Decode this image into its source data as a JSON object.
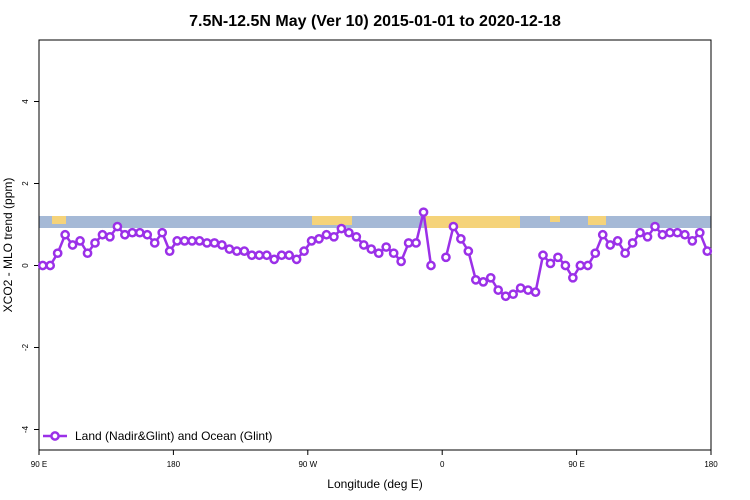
{
  "chart_data": {
    "type": "line",
    "title": "7.5N-12.5N May (Ver 10)   2015-01-01 to 2020-12-18",
    "x_label": "Longitude (deg E)",
    "y_label": "XCO2 - MLO trend (ppm)",
    "xlim": [
      90,
      540
    ],
    "xticks": [
      {
        "value": 90,
        "label": "90 E"
      },
      {
        "value": 180,
        "label": "180"
      },
      {
        "value": 270,
        "label": "90 W"
      },
      {
        "value": 360,
        "label": "0"
      },
      {
        "value": 450,
        "label": "90 E"
      },
      {
        "value": 540,
        "label": "180"
      }
    ],
    "ylim": [
      -4.5,
      5.5
    ],
    "yticks": [
      -4,
      -2,
      0,
      2,
      4
    ],
    "legend": "bottom-left",
    "x": [
      92.5,
      97.5,
      102.5,
      107.5,
      112.5,
      117.5,
      122.5,
      127.5,
      132.5,
      137.5,
      142.5,
      147.5,
      152.5,
      157.5,
      162.5,
      167.5,
      172.5,
      177.5,
      182.5,
      187.5,
      192.5,
      197.5,
      202.5,
      207.5,
      212.5,
      217.5,
      222.5,
      227.5,
      232.5,
      237.5,
      242.5,
      247.5,
      252.5,
      257.5,
      262.5,
      267.5,
      272.5,
      277.5,
      282.5,
      287.5,
      292.5,
      297.5,
      302.5,
      307.5,
      312.5,
      317.5,
      322.5,
      327.5,
      332.5,
      337.5,
      342.5,
      347.5,
      352.5,
      357.5,
      362.5,
      367.5,
      372.5,
      377.5,
      382.5,
      387.5,
      392.5,
      397.5,
      402.5,
      407.5,
      412.5,
      417.5,
      422.5,
      427.5,
      432.5,
      437.5,
      442.5,
      447.5,
      452.5,
      457.5,
      462.5,
      467.5,
      472.5,
      477.5,
      482.5,
      487.5,
      492.5,
      497.5,
      502.5,
      507.5,
      512.5,
      517.5,
      522.5,
      527.5,
      532.5,
      537.5
    ],
    "series": [
      {
        "name": "Land (Nadir&Glint) and Ocean (Glint)",
        "color": "#9b30e8",
        "values": [
          0,
          0,
          0.3,
          0.75,
          0.5,
          0.6,
          0.3,
          0.55,
          0.75,
          0.7,
          0.95,
          0.75,
          0.8,
          0.8,
          0.75,
          0.55,
          0.8,
          0.35,
          0.6,
          0.6,
          0.6,
          0.6,
          0.55,
          0.55,
          0.5,
          0.4,
          0.35,
          0.35,
          0.25,
          0.25,
          0.25,
          0.15,
          0.25,
          0.25,
          0.15,
          0.35,
          0.6,
          0.65,
          0.75,
          0.7,
          0.9,
          0.8,
          0.7,
          0.5,
          0.4,
          0.3,
          0.45,
          0.3,
          0.1,
          0.55,
          0.55,
          1.3,
          0,
          null,
          0.2,
          0.95,
          0.65,
          0.35,
          -0.35,
          -0.4,
          -0.3,
          -0.6,
          -0.75,
          -0.7,
          -0.55,
          -0.6,
          -0.65,
          0.25,
          0.05,
          0.2,
          0,
          -0.3,
          0,
          0,
          0.3,
          0.75,
          0.5,
          0.6,
          0.3,
          0.55,
          0.8,
          0.7,
          0.95,
          0.75,
          0.8,
          0.8,
          0.75,
          0.6,
          0.8,
          0.35
        ]
      }
    ]
  }
}
